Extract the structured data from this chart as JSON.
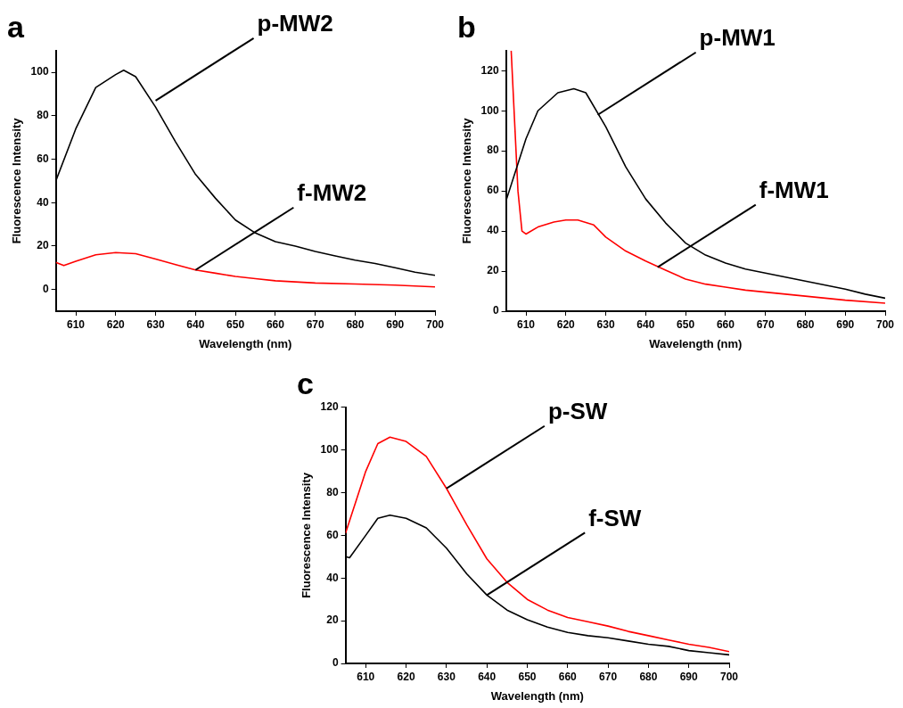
{
  "chart_data": [
    {
      "type": "line",
      "title": "a",
      "xlabel": "Wavelength (nm)",
      "ylabel": "Fluorescence Intensity",
      "xlim": [
        605,
        700
      ],
      "xticks": [
        610,
        620,
        630,
        640,
        650,
        660,
        670,
        680,
        690,
        700
      ],
      "ylim": [
        -10,
        110
      ],
      "yticks": [
        0,
        20,
        40,
        60,
        80,
        100
      ],
      "grid": false,
      "legend": false,
      "marker": "none",
      "line_style": "solid",
      "series": [
        {
          "color": "#000000",
          "x": [
            605,
            610,
            615,
            620,
            622,
            625,
            630,
            635,
            640,
            645,
            650,
            655,
            660,
            665,
            670,
            675,
            680,
            685,
            690,
            695,
            700
          ],
          "values": [
            50,
            74,
            93,
            99,
            101,
            98,
            84,
            68,
            53,
            42,
            32,
            26,
            22,
            20,
            17.5,
            15.5,
            13.5,
            12,
            10,
            8,
            6.5
          ]
        },
        {
          "color": "#ff0000",
          "x": [
            605,
            607,
            610,
            615,
            620,
            625,
            630,
            635,
            640,
            645,
            650,
            655,
            660,
            665,
            670,
            680,
            690,
            700
          ],
          "values": [
            12.5,
            11,
            13,
            16,
            17,
            16.5,
            14,
            11.5,
            9,
            7.5,
            6,
            5,
            4,
            3.5,
            3,
            2.5,
            2,
            1.2
          ]
        }
      ],
      "annotations": [
        {
          "text": "p-MW2",
          "x": 630,
          "y": 87
        },
        {
          "text": "f-MW2",
          "x": 640,
          "y": 9
        }
      ]
    },
    {
      "type": "line",
      "title": "b",
      "xlabel": "Wavelength (nm)",
      "ylabel": "Fluorescence Intensity",
      "xlim": [
        605,
        700
      ],
      "xticks": [
        610,
        620,
        630,
        640,
        650,
        660,
        670,
        680,
        690,
        700
      ],
      "ylim": [
        0,
        130
      ],
      "yticks": [
        0,
        20,
        40,
        60,
        80,
        100,
        120
      ],
      "grid": false,
      "legend": false,
      "marker": "none",
      "line_style": "solid",
      "series": [
        {
          "color": "#000000",
          "x": [
            605,
            610,
            613,
            618,
            622,
            625,
            630,
            635,
            640,
            645,
            650,
            655,
            660,
            665,
            670,
            680,
            685,
            690,
            695,
            700
          ],
          "values": [
            55,
            86,
            100,
            109,
            111,
            109,
            92,
            72,
            56,
            44,
            34,
            28,
            24,
            21,
            19,
            15,
            13,
            11,
            8.5,
            6.5
          ]
        },
        {
          "color": "#ff0000",
          "x": [
            606.3,
            608,
            609,
            610,
            613,
            617,
            620,
            623,
            627,
            630,
            635,
            640,
            645,
            650,
            655,
            660,
            665,
            670,
            680,
            690,
            700
          ],
          "values": [
            130,
            60,
            40,
            38.5,
            42,
            44.5,
            45.5,
            45.5,
            43,
            37,
            30,
            25,
            20.5,
            16,
            13.5,
            12,
            10.5,
            9.5,
            7.5,
            5.5,
            4
          ]
        }
      ],
      "annotations": [
        {
          "text": "p-MW1",
          "x": 628,
          "y": 98
        },
        {
          "text": "f-MW1",
          "x": 643,
          "y": 22
        }
      ]
    },
    {
      "type": "line",
      "title": "c",
      "xlabel": "Wavelength (nm)",
      "ylabel": "Fluorescence Intensity",
      "xlim": [
        605,
        700
      ],
      "xticks": [
        610,
        620,
        630,
        640,
        650,
        660,
        670,
        680,
        690,
        700
      ],
      "ylim": [
        0,
        120
      ],
      "yticks": [
        0,
        20,
        40,
        60,
        80,
        100,
        120
      ],
      "grid": false,
      "legend": false,
      "marker": "none",
      "line_style": "solid",
      "series": [
        {
          "color": "#ff0000",
          "x": [
            605,
            610,
            613,
            616,
            620,
            625,
            630,
            635,
            640,
            645,
            650,
            655,
            660,
            665,
            670,
            675,
            680,
            685,
            690,
            695,
            700
          ],
          "values": [
            61,
            90,
            103,
            106,
            104,
            97,
            82,
            65,
            49,
            38,
            30,
            25,
            21.5,
            19.5,
            17.5,
            15,
            13,
            11,
            9,
            7.5,
            5.5
          ]
        },
        {
          "color": "#000000",
          "x": [
            605,
            606,
            610,
            613,
            616,
            620,
            625,
            630,
            635,
            640,
            645,
            650,
            655,
            660,
            665,
            670,
            675,
            680,
            685,
            690,
            695,
            700
          ],
          "values": [
            50,
            49.5,
            60,
            68,
            69.5,
            68,
            63.5,
            54,
            42,
            32,
            25,
            20.5,
            17,
            14.5,
            13,
            12,
            10.5,
            9,
            8,
            6,
            5,
            4
          ]
        }
      ],
      "annotations": [
        {
          "text": "p-SW",
          "x": 630,
          "y": 82
        },
        {
          "text": "f-SW",
          "x": 640,
          "y": 32
        }
      ]
    }
  ]
}
